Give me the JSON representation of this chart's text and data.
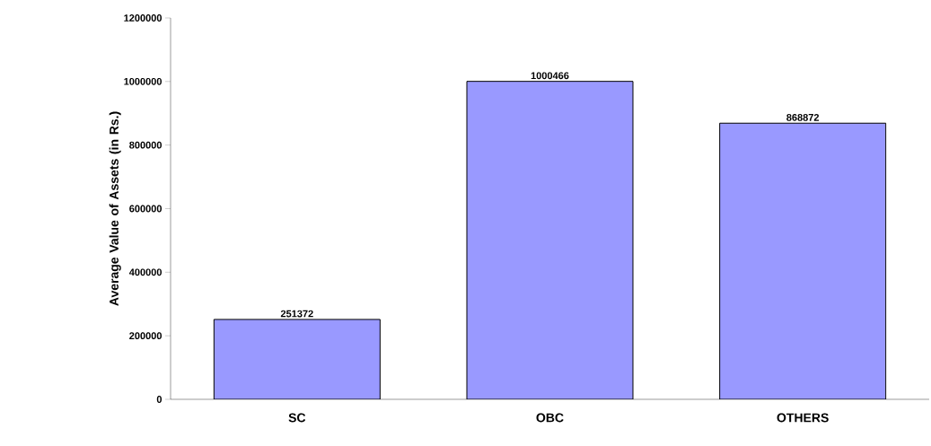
{
  "chart_data": {
    "type": "bar",
    "ylabel": "Average Value of Assets (in Rs.)",
    "categories": [
      "SC",
      "OBC",
      "OTHERS"
    ],
    "values": [
      251372,
      1000466,
      868872
    ],
    "color": "#9999ff",
    "ylim": [
      0,
      1200000
    ],
    "yticks": [
      0,
      200000,
      400000,
      600000,
      800000,
      1000000,
      1200000
    ],
    "data_labels": true
  }
}
